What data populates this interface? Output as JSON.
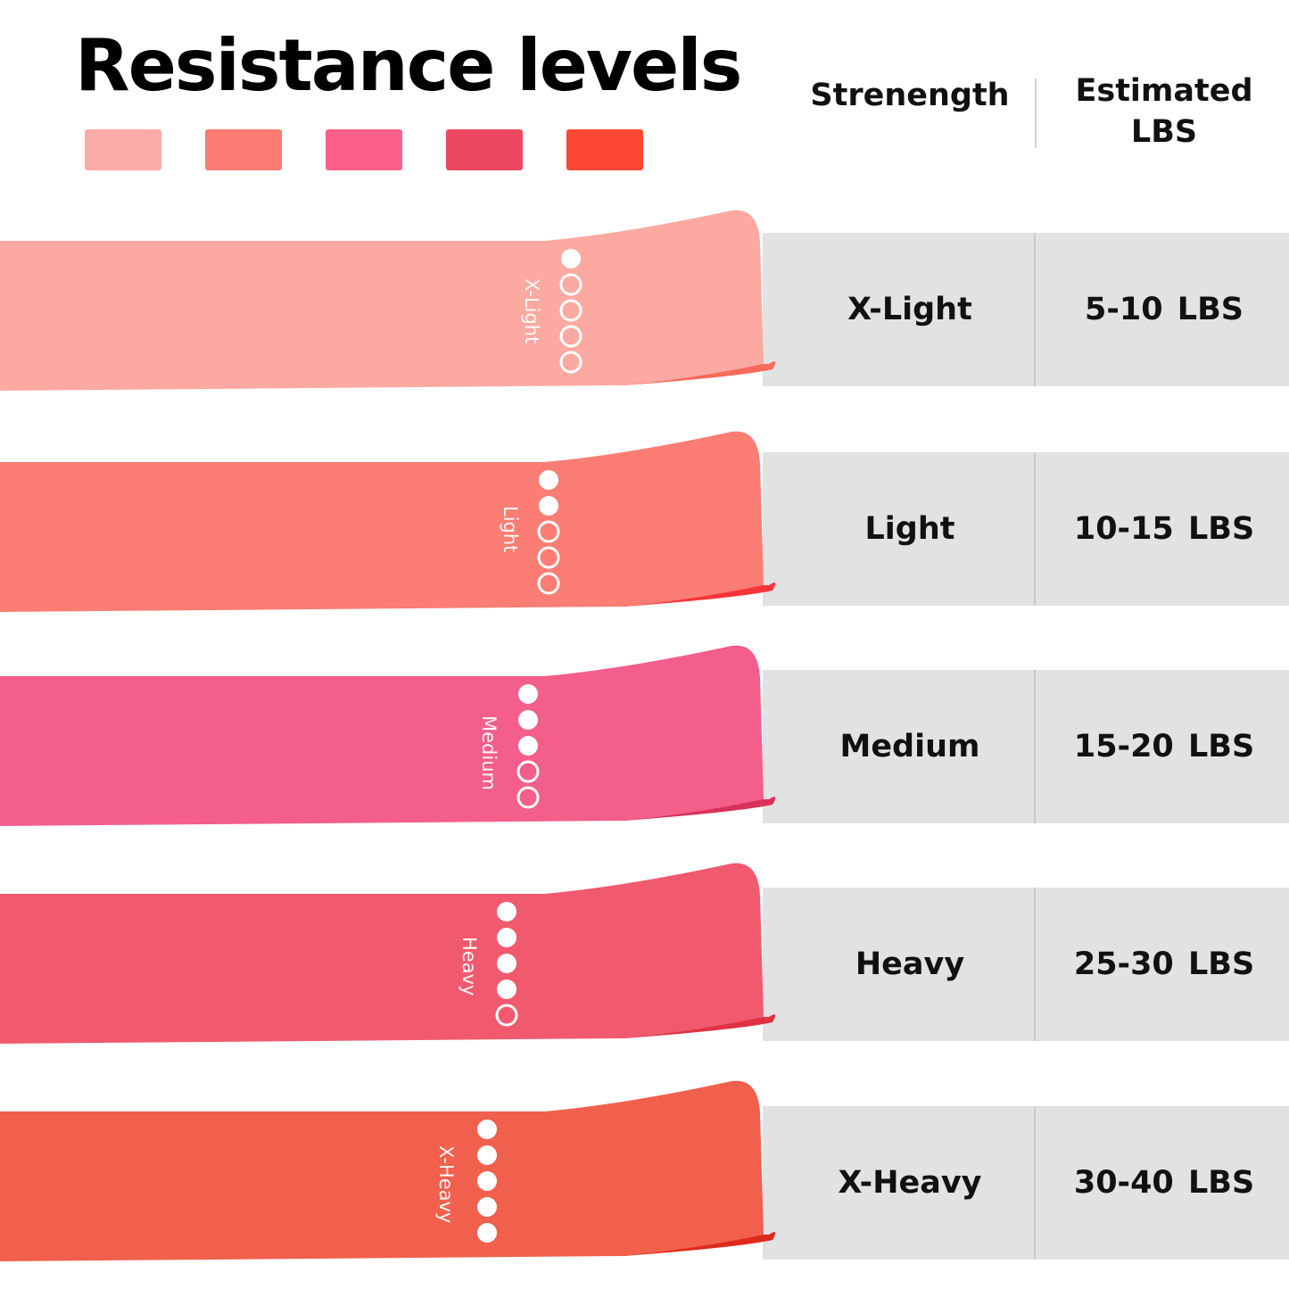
{
  "title": "Resistance levels",
  "swatch_colors": [
    "#fcaaa6",
    "#fc7b72",
    "#fd5f88",
    "#ec4860",
    "#fb4733"
  ],
  "table": {
    "col_strength": "Strenength",
    "col_lbs_line1": "Estimated",
    "col_lbs_line2": "LBS"
  },
  "bands": [
    {
      "label": "X-Light",
      "strength": "X-Light",
      "lbs": "5-10  LBS",
      "filled": 1,
      "total": 5,
      "color_main": "#fca9a2",
      "color_edge": "#f86a5c"
    },
    {
      "label": "Light",
      "strength": "Light",
      "lbs": "10-15 LBS",
      "filled": 2,
      "total": 5,
      "color_main": "#fb7d73",
      "color_edge": "#f7343a"
    },
    {
      "label": "Medium",
      "strength": "Medium",
      "lbs": "15-20 LBS",
      "filled": 3,
      "total": 5,
      "color_main": "#f35e8b",
      "color_edge": "#d9325a"
    },
    {
      "label": "Heavy",
      "strength": "Heavy",
      "lbs": "25-30 LBS",
      "filled": 4,
      "total": 5,
      "color_main": "#f15a6e",
      "color_edge": "#df3243"
    },
    {
      "label": "X-Heavy",
      "strength": "X-Heavy",
      "lbs": "30-40 LBS",
      "filled": 5,
      "total": 5,
      "color_main": "#f1604c",
      "color_edge": "#dd2a1c"
    }
  ]
}
